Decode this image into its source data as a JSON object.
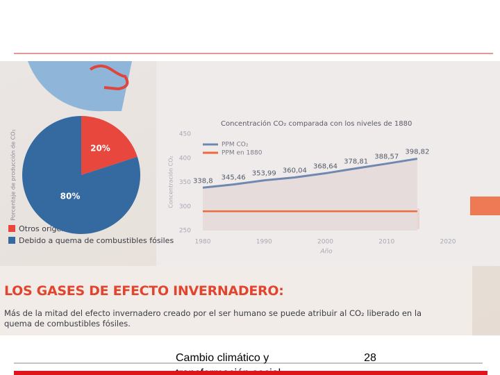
{
  "chart_data": [
    {
      "type": "pie",
      "ylabel": "Porcentaje de producción de CO₂",
      "categories": [
        "Otros orígenes",
        "Debido a quema de combustibles fósiles"
      ],
      "values": [
        20,
        80
      ],
      "value_labels": [
        "20%",
        "80%"
      ],
      "colors": [
        "#e8473d",
        "#356aa0"
      ]
    },
    {
      "type": "line",
      "title": "Concentración CO₂ comparada con los niveles de 1880",
      "xlabel": "Año",
      "ylabel": "Concentración CO₂",
      "x": [
        1980,
        1985,
        1990,
        1995,
        2000,
        2005,
        2010,
        2015
      ],
      "series": [
        {
          "name": "PPM CO₂",
          "color": "#7088b0",
          "values": [
            338.8,
            345.46,
            353.99,
            360.04,
            368.64,
            378.81,
            388.57,
            398.82
          ],
          "value_labels": [
            "338,8",
            "345,46",
            "353,99",
            "360,04",
            "368,64",
            "378,81",
            "388,57",
            "398,82"
          ]
        },
        {
          "name": "PPM en 1880",
          "color": "#ec6a3c",
          "values": [
            290,
            290,
            290,
            290,
            290,
            290,
            290,
            290
          ]
        }
      ],
      "xlim": [
        1975,
        2020
      ],
      "xticks": [
        1980,
        1990,
        2000,
        2010,
        2020
      ],
      "ylim": [
        250,
        450
      ],
      "yticks": [
        250,
        300,
        350,
        400,
        450
      ]
    }
  ],
  "heading": "LOS GASES DE EFECTO INVERNADERO:",
  "body": "Más de la mitad del efecto invernadero creado por el ser humano se puede atribuir al CO₂ liberado en la quema de combustibles fósiles.",
  "footer": {
    "text": "Cambio climático y transformación social",
    "page": "28"
  }
}
